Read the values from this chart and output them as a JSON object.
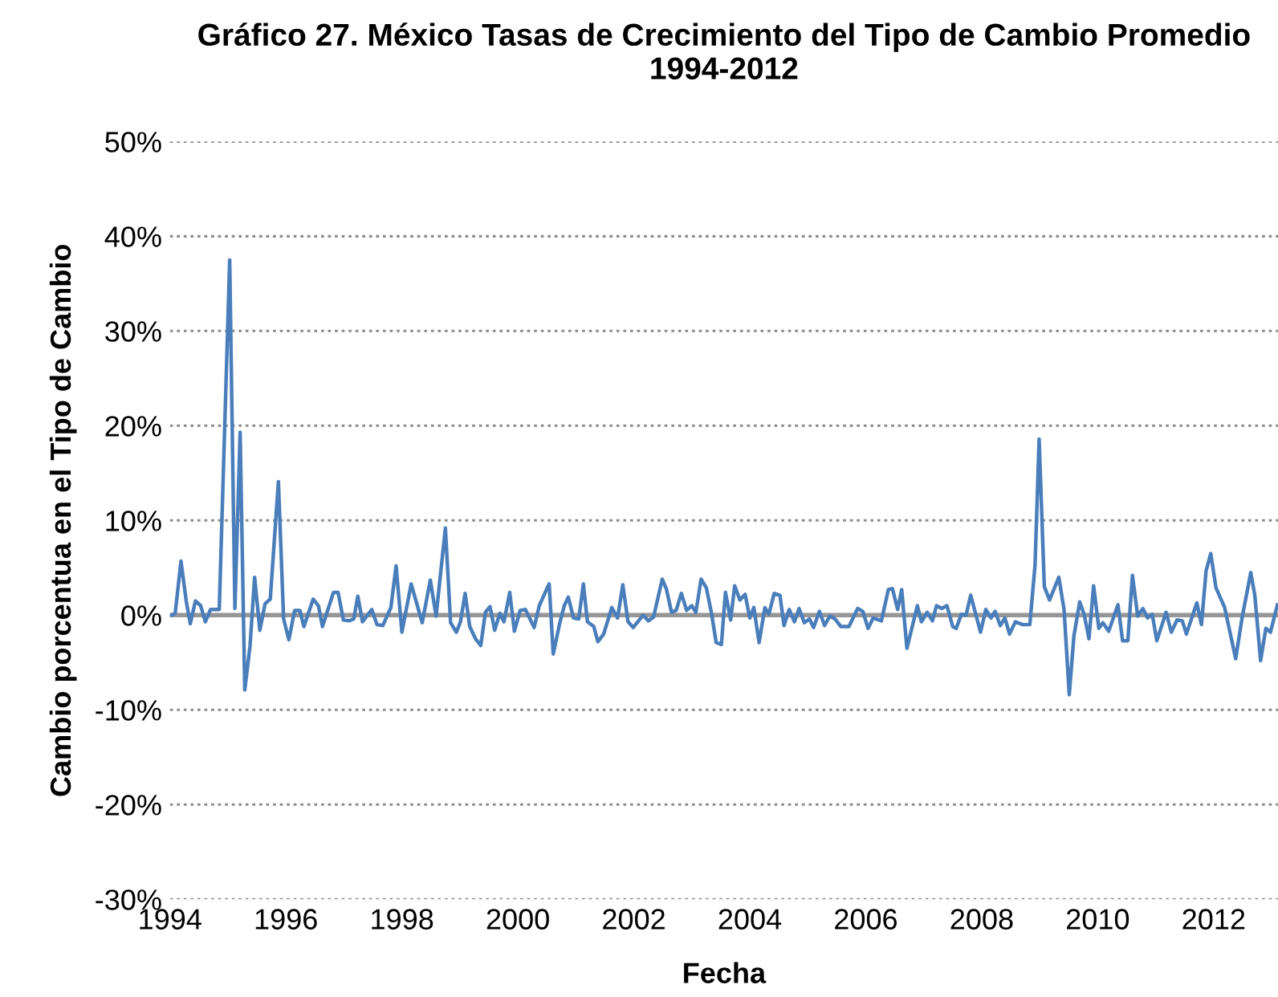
{
  "chart_data": {
    "type": "line",
    "title": "Gráfico 27. México Tasas de Crecimiento del Tipo de Cambio Promedio\n1994-2012",
    "xlabel": "Fecha",
    "ylabel": "Cambio porcentua en el Tipo de Cambio",
    "x": [
      1994.03,
      1994.09,
      1994.19,
      1994.28,
      1994.35,
      1994.44,
      1994.53,
      1994.61,
      1994.7,
      1994.85,
      1995.03,
      1995.12,
      1995.21,
      1995.29,
      1995.38,
      1995.46,
      1995.55,
      1995.64,
      1995.73,
      1995.87,
      1995.96,
      1996.05,
      1996.15,
      1996.24,
      1996.31,
      1996.47,
      1996.56,
      1996.63,
      1996.82,
      1996.9,
      1996.99,
      1997.09,
      1997.17,
      1997.24,
      1997.32,
      1997.48,
      1997.57,
      1997.67,
      1997.81,
      1997.9,
      1998.0,
      1998.16,
      1998.35,
      1998.49,
      1998.59,
      1998.75,
      1998.84,
      1998.94,
      1999.01,
      1999.09,
      1999.17,
      1999.27,
      1999.36,
      1999.44,
      1999.52,
      1999.6,
      1999.69,
      1999.76,
      1999.86,
      1999.94,
      2000.04,
      2000.13,
      2000.28,
      2000.37,
      2000.5,
      2000.54,
      2000.61,
      2000.72,
      2000.8,
      2000.87,
      2000.96,
      2001.05,
      2001.13,
      2001.2,
      2001.31,
      2001.38,
      2001.48,
      2001.62,
      2001.72,
      2001.81,
      2001.9,
      2001.99,
      2002.16,
      2002.25,
      2002.34,
      2002.49,
      2002.56,
      2002.65,
      2002.73,
      2002.82,
      2002.91,
      2003.0,
      2003.07,
      2003.16,
      2003.25,
      2003.34,
      2003.42,
      2003.51,
      2003.58,
      2003.67,
      2003.74,
      2003.83,
      2003.92,
      2004.0,
      2004.07,
      2004.16,
      2004.26,
      2004.33,
      2004.42,
      2004.52,
      2004.59,
      2004.68,
      2004.77,
      2004.85,
      2004.94,
      2005.03,
      2005.1,
      2005.2,
      2005.29,
      2005.38,
      2005.47,
      2005.57,
      2005.71,
      2005.86,
      2005.95,
      2006.04,
      2006.13,
      2006.27,
      2006.39,
      2006.46,
      2006.55,
      2006.62,
      2006.71,
      2006.89,
      2006.96,
      2007.06,
      2007.15,
      2007.22,
      2007.31,
      2007.4,
      2007.5,
      2007.56,
      2007.65,
      2007.73,
      2007.81,
      2007.98,
      2008.07,
      2008.16,
      2008.23,
      2008.32,
      2008.4,
      2008.48,
      2008.58,
      2008.71,
      2008.83,
      2008.92,
      2008.99,
      2009.08,
      2009.17,
      2009.33,
      2009.42,
      2009.51,
      2009.59,
      2009.69,
      2009.77,
      2009.85,
      2009.93,
      2010.02,
      2010.09,
      2010.19,
      2010.35,
      2010.43,
      2010.52,
      2010.6,
      2010.69,
      2010.78,
      2010.86,
      2010.94,
      2011.02,
      2011.18,
      2011.27,
      2011.37,
      2011.46,
      2011.53,
      2011.71,
      2011.79,
      2011.87,
      2011.95,
      2012.04,
      2012.19,
      2012.38,
      2012.49,
      2012.64,
      2012.71,
      2012.81,
      2012.9,
      2012.98,
      2013.1
    ],
    "series": [
      {
        "color": "#4a7ebb",
        "values": [
          0,
          0.2,
          5.7,
          1.5,
          -0.9,
          1.5,
          1.0,
          -0.7,
          0.6,
          0.6,
          37.5,
          0.7,
          19.3,
          -7.9,
          -3.3,
          4.0,
          -1.6,
          1.2,
          1.7,
          14.1,
          -0.4,
          -2.6,
          0.5,
          0.5,
          -1.2,
          1.7,
          1.0,
          -1.2,
          2.4,
          2.4,
          -0.5,
          -0.6,
          -0.4,
          2.0,
          -0.7,
          0.6,
          -1.0,
          -1.1,
          0.8,
          5.2,
          -1.8,
          3.3,
          -0.8,
          3.7,
          -0.1,
          9.2,
          -0.8,
          -1.8,
          -0.7,
          2.3,
          -1.2,
          -2.5,
          -3.2,
          0.3,
          0.9,
          -1.6,
          0.2,
          -0.7,
          2.4,
          -1.7,
          0.5,
          0.6,
          -1.3,
          1.0,
          2.8,
          3.3,
          -4.1,
          -0.9,
          1.0,
          1.9,
          -0.3,
          -0.4,
          3.3,
          -0.7,
          -1.2,
          -2.8,
          -2.0,
          0.8,
          -0.3,
          3.2,
          -0.7,
          -1.3,
          0.0,
          -0.6,
          -0.2,
          3.8,
          2.8,
          0.3,
          0.5,
          2.3,
          0.5,
          1.0,
          0.3,
          3.8,
          2.9,
          0.2,
          -2.9,
          -3.1,
          2.4,
          -0.5,
          3.1,
          1.6,
          2.2,
          -0.3,
          0.8,
          -2.9,
          0.8,
          0.1,
          2.3,
          2.1,
          -1.1,
          0.6,
          -0.7,
          0.7,
          -0.8,
          -0.4,
          -1.3,
          0.4,
          -1.1,
          -0.1,
          -0.4,
          -1.2,
          -1.2,
          0.7,
          0.4,
          -1.4,
          -0.3,
          -0.6,
          2.7,
          2.8,
          0.6,
          2.7,
          -3.5,
          1.0,
          -0.7,
          0.3,
          -0.6,
          1.0,
          0.7,
          1.0,
          -1.2,
          -1.4,
          0.1,
          0.0,
          2.1,
          -1.8,
          0.6,
          -0.3,
          0.4,
          -1.1,
          -0.3,
          -2.0,
          -0.7,
          -1.0,
          -1.0,
          5.3,
          18.6,
          3.0,
          1.6,
          4.0,
          0.6,
          -8.4,
          -2.2,
          1.4,
          0.0,
          -2.5,
          3.1,
          -1.4,
          -0.8,
          -1.7,
          1.1,
          -2.7,
          -2.7,
          4.2,
          -0.1,
          0.7,
          -0.3,
          0.1,
          -2.7,
          0.3,
          -1.8,
          -0.5,
          -0.6,
          -2.0,
          1.3,
          -1.0,
          4.7,
          6.5,
          2.9,
          0.8,
          -4.6,
          -0.3,
          4.5,
          2.1,
          -4.8,
          -1.4,
          -1.8,
          1.1
        ]
      }
    ],
    "xlim": [
      1994,
      2013.11
    ],
    "xticks": [
      1994,
      1996,
      1998,
      2000,
      2002,
      2004,
      2006,
      2008,
      2010,
      2012
    ],
    "ylim": [
      -30,
      50
    ],
    "yticks": [
      {
        "value": -30,
        "label": "-30%"
      },
      {
        "value": -20,
        "label": "-20%"
      },
      {
        "value": -10,
        "label": "-10%"
      },
      {
        "value": 0,
        "label": "0%"
      },
      {
        "value": 10,
        "label": "10%"
      },
      {
        "value": 20,
        "label": "20%"
      },
      {
        "value": 30,
        "label": "30%"
      },
      {
        "value": 40,
        "label": "40%"
      },
      {
        "value": 50,
        "label": "50%"
      }
    ],
    "ref_lines": [
      {
        "axis": "y",
        "value": 0,
        "color": "#969696",
        "line_style": "solid"
      }
    ],
    "grid": "y",
    "legend": false,
    "marker": "none",
    "line_style": "solid"
  }
}
